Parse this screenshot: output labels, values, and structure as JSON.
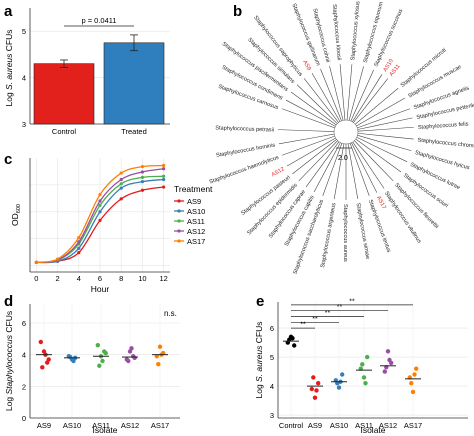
{
  "colors": {
    "control": "#e3211c",
    "treated": "#2f7fbf",
    "AS9": "#e41a1c",
    "AS10": "#377eb8",
    "AS11": "#4daf4a",
    "AS12": "#984ea3",
    "AS17": "#ff7f00",
    "control_point": "#000000",
    "highlight_label": "#e3211c"
  },
  "chart_data": [
    {
      "panel": "a",
      "type": "bar",
      "categories": [
        "Control",
        "Treated"
      ],
      "values": [
        4.3,
        4.75
      ],
      "errors": [
        0.08,
        0.17
      ],
      "ylabel": "Log S. aureus CFUs",
      "ylim": [
        3,
        5.5
      ],
      "yticks": [
        "3",
        "4",
        "5"
      ],
      "annotation": "p = 0.0411",
      "grid": true
    },
    {
      "panel": "b",
      "type": "tree",
      "scale_label": "2.0",
      "tips": [
        {
          "label": "Staphylococcus kloosii",
          "angle": 95,
          "highlight": false
        },
        {
          "label": "Staphylococcus xylosus",
          "angle": 85,
          "highlight": false
        },
        {
          "label": "Staphylococcus equorum",
          "angle": 75,
          "highlight": false
        },
        {
          "label": "Staphylococcus succinus",
          "angle": 66,
          "highlight": false
        },
        {
          "label": "AS10",
          "angle": 58,
          "highlight": true
        },
        {
          "label": "AS11",
          "angle": 52,
          "highlight": true
        },
        {
          "label": "Staphylococcus microti",
          "angle": 40,
          "highlight": false
        },
        {
          "label": "Staphylococcus muscae",
          "angle": 30,
          "highlight": false
        },
        {
          "label": "Staphylococcus agnetis",
          "angle": 20,
          "highlight": false
        },
        {
          "label": "Staphylococcus pettenkoferi",
          "angle": 12,
          "highlight": false
        },
        {
          "label": "Staphylococcus felis",
          "angle": 4,
          "highlight": false
        },
        {
          "label": "Staphylococcus chromogenes",
          "angle": -6,
          "highlight": false
        },
        {
          "label": "Staphylococcus hyicus",
          "angle": -16,
          "highlight": false
        },
        {
          "label": "Staphylococcus lutrae",
          "angle": -26,
          "highlight": false
        },
        {
          "label": "Staphylococcus sciuri",
          "angle": -36,
          "highlight": false
        },
        {
          "label": "Staphylococcus fleurettii",
          "angle": -46,
          "highlight": false
        },
        {
          "label": "Staphylococcus vitulinus",
          "angle": -56,
          "highlight": false
        },
        {
          "label": "AS17",
          "angle": -63,
          "highlight": true
        },
        {
          "label": "Staphylococcus lentus",
          "angle": -70,
          "highlight": false
        },
        {
          "label": "Staphylococcus simiae",
          "angle": -80,
          "highlight": false
        },
        {
          "label": "Staphylococcus aureus",
          "angle": -90,
          "highlight": false
        },
        {
          "label": "Staphylococcus argenteus",
          "angle": -100,
          "highlight": false
        },
        {
          "label": "Staphylococcus saccharolyticus",
          "angle": -110,
          "highlight": false
        },
        {
          "label": "Staphylococcus capitis",
          "angle": -118,
          "highlight": false
        },
        {
          "label": "Staphylococcus caprae",
          "angle": -126,
          "highlight": false
        },
        {
          "label": "Staphylococcus epidermidis",
          "angle": -134,
          "highlight": false
        },
        {
          "label": "Staphylococcus pasteuri",
          "angle": -142,
          "highlight": false
        },
        {
          "label": "AS12",
          "angle": -150,
          "highlight": true
        },
        {
          "label": "Staphylococcus haemolyticus",
          "angle": -160,
          "highlight": false
        },
        {
          "label": "Staphylococcus hominis",
          "angle": -170,
          "highlight": false
        },
        {
          "label": "Staphylococcus petrasii",
          "angle": 178,
          "highlight": false
        },
        {
          "label": "Staphylococcus carnosus",
          "angle": 160,
          "highlight": false
        },
        {
          "label": "Staphylococcus condimenti",
          "angle": 152,
          "highlight": false
        },
        {
          "label": "Staphylococcus piscifermentans",
          "angle": 144,
          "highlight": false
        },
        {
          "label": "Staphylococcus simulans",
          "angle": 136,
          "highlight": false
        },
        {
          "label": "Staphylococcus saprophyticus",
          "angle": 128,
          "highlight": false
        },
        {
          "label": "AS9",
          "angle": 120,
          "highlight": true
        },
        {
          "label": "Staphylococcus gallinarum",
          "angle": 112,
          "highlight": false
        },
        {
          "label": "Staphylococcus cohnii",
          "angle": 104,
          "highlight": false
        }
      ]
    },
    {
      "panel": "c",
      "type": "line",
      "x": [
        0,
        2,
        4,
        6,
        8,
        10,
        12
      ],
      "xlabel": "Hour",
      "ylabel": "OD600",
      "ylabel_main": "OD",
      "ylabel_sub": "600",
      "xlim": [
        -0.6,
        12.6
      ],
      "ylim": [
        -0.06,
        1.0
      ],
      "xticks": [
        "0",
        "2",
        "4",
        "6",
        "8",
        "10",
        "12"
      ],
      "legend_title": "Treatment",
      "legend_position": "right",
      "series": [
        {
          "name": "AS9",
          "values": [
            0.03,
            0.04,
            0.12,
            0.42,
            0.62,
            0.7,
            0.73
          ]
        },
        {
          "name": "AS10",
          "values": [
            0.03,
            0.04,
            0.16,
            0.5,
            0.72,
            0.78,
            0.8
          ]
        },
        {
          "name": "AS11",
          "values": [
            0.03,
            0.05,
            0.2,
            0.56,
            0.76,
            0.82,
            0.83
          ]
        },
        {
          "name": "AS12",
          "values": [
            0.03,
            0.05,
            0.22,
            0.6,
            0.8,
            0.87,
            0.9
          ]
        },
        {
          "name": "AS17",
          "values": [
            0.03,
            0.06,
            0.26,
            0.66,
            0.86,
            0.92,
            0.93
          ]
        }
      ]
    },
    {
      "panel": "d",
      "type": "scatter",
      "categories": [
        "AS9",
        "AS10",
        "AS11",
        "AS12",
        "AS17"
      ],
      "xlabel": "Isolate",
      "ylabel": "Log Staphylococcus CFUs",
      "ylim": [
        0,
        7.2
      ],
      "yticks": [
        "0",
        "2",
        "4",
        "6"
      ],
      "annotation": "n.s.",
      "grid": true,
      "means": [
        4.0,
        3.8,
        3.9,
        3.85,
        4.0
      ],
      "points": [
        [
          4.8,
          4.2,
          3.5,
          3.2,
          4.0,
          3.7
        ],
        [
          3.9,
          3.7,
          3.8,
          3.85,
          3.6
        ],
        [
          4.6,
          3.9,
          4.2,
          3.3,
          3.6,
          4.1
        ],
        [
          3.7,
          4.2,
          3.9,
          3.6,
          4.4,
          3.8
        ],
        [
          3.9,
          4.5,
          4.1,
          3.4,
          4.0
        ]
      ]
    },
    {
      "panel": "e",
      "type": "scatter",
      "categories": [
        "Control",
        "AS9",
        "AS10",
        "AS11",
        "AS12",
        "AS17"
      ],
      "xlabel": "Isolate",
      "ylabel": "Log S. aureus CFUs",
      "ylim": [
        2.9,
        6.9
      ],
      "yticks": [
        "3",
        "4",
        "5",
        "6"
      ],
      "grid": true,
      "means": [
        5.55,
        4.0,
        4.15,
        4.55,
        4.7,
        4.25
      ],
      "points": [
        [
          5.5,
          5.7,
          5.4,
          5.6,
          5.65
        ],
        [
          3.9,
          3.6,
          4.1,
          4.3,
          3.85
        ],
        [
          4.2,
          3.95,
          4.4,
          4.1,
          4.15
        ],
        [
          4.6,
          4.3,
          5.0,
          4.75,
          4.1
        ],
        [
          4.5,
          5.2,
          4.8,
          4.65,
          4.9
        ],
        [
          4.3,
          3.8,
          4.6,
          4.1,
          4.4
        ]
      ],
      "significance": [
        {
          "from": "Control",
          "to": "AS9",
          "label": "**"
        },
        {
          "from": "Control",
          "to": "AS10",
          "label": "**"
        },
        {
          "from": "Control",
          "to": "AS11",
          "label": "**"
        },
        {
          "from": "Control",
          "to": "AS12",
          "label": "**"
        },
        {
          "from": "Control",
          "to": "AS17",
          "label": "**"
        }
      ]
    }
  ],
  "panels": {
    "a": {
      "letter": "a",
      "ylabel_italic": "S. aureus",
      "ylabel_prefix": "Log ",
      "ylabel_suffix": " CFUs"
    },
    "b": {
      "letter": "b"
    },
    "c": {
      "letter": "c"
    },
    "d": {
      "letter": "d",
      "ylabel_prefix": "Log ",
      "ylabel_italic": "Staphylococcus",
      "ylabel_suffix": " CFUs"
    },
    "e": {
      "letter": "e",
      "ylabel_prefix": "Log ",
      "ylabel_italic": "S. aureus",
      "ylabel_suffix": " CFUs"
    }
  }
}
